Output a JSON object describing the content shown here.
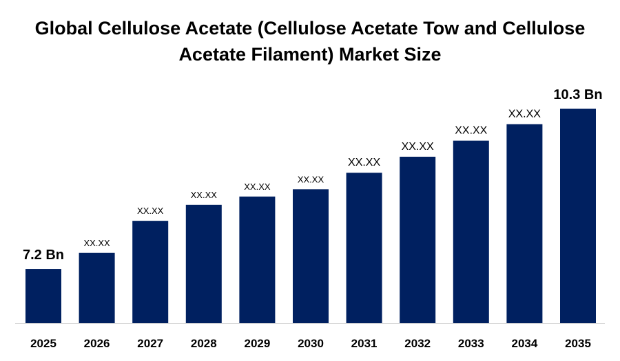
{
  "chart_data": {
    "type": "bar",
    "title": "Global Cellulose Acetate (Cellulose Acetate Tow and Cellulose Acetate Filament) Market Size",
    "categories": [
      "2025",
      "2026",
      "2027",
      "2028",
      "2029",
      "2030",
      "2031",
      "2032",
      "2033",
      "2034",
      "2035"
    ],
    "values": [
      7.2,
      7.51,
      8.13,
      8.44,
      8.6,
      8.74,
      9.06,
      9.37,
      9.68,
      10.0,
      10.3
    ],
    "data_labels": [
      "7.2 Bn",
      "XX.XX",
      "XX.XX",
      "XX.XX",
      "XX.XX",
      "XX.XX",
      "XX.XX",
      "XX.XX",
      "XX.XX",
      "XX.XX",
      "10.3 Bn"
    ],
    "xlabel": "",
    "ylabel": "",
    "ylim": [
      6.15,
      10.3
    ],
    "grid": false,
    "legend": "none",
    "bar_color": "#002060"
  }
}
